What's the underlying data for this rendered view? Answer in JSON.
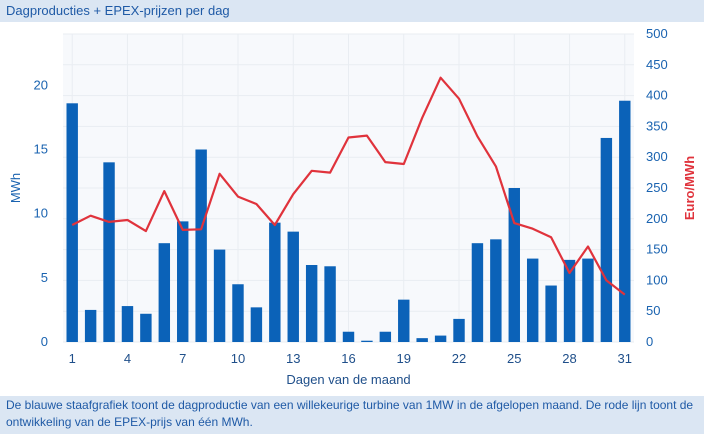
{
  "header": {
    "title": "Dagproducties + EPEX-prijzen per dag"
  },
  "caption": {
    "text": "De blauwe staafgrafiek toont de dagproductie van een willekeurige turbine van 1MW in de afgelopen maand. De rode lijn toont de ontwikkeling van de EPEX-prijs van één MWh."
  },
  "colors": {
    "bar": "#0b62b8",
    "line": "#e0333c",
    "axis_left": "#1a63b0",
    "axis_right": "#e0333c",
    "grid": "#e9edf2"
  },
  "chart_data": {
    "type": "bar",
    "title": "Dagproducties + EPEX-prijzen per dag",
    "xlabel": "Dagen van de maand",
    "ylabel": "MWh",
    "y2label": "Euro/MWh",
    "x": [
      1,
      2,
      3,
      4,
      5,
      6,
      7,
      8,
      9,
      10,
      11,
      12,
      13,
      14,
      15,
      16,
      17,
      18,
      19,
      20,
      21,
      22,
      23,
      24,
      25,
      26,
      27,
      28,
      29,
      30,
      31
    ],
    "xticks": [
      1,
      4,
      7,
      10,
      13,
      16,
      19,
      22,
      25,
      28,
      31
    ],
    "ylim": [
      0,
      24
    ],
    "yticks": [
      0,
      5,
      10,
      15,
      20
    ],
    "y2lim": [
      0,
      500
    ],
    "y2ticks": [
      0,
      50,
      100,
      150,
      200,
      250,
      300,
      350,
      400,
      450,
      500
    ],
    "grid": true,
    "series": [
      {
        "name": "Dagproductie",
        "type": "bar",
        "axis": "left",
        "values": [
          18.6,
          2.5,
          14.0,
          2.8,
          2.2,
          7.7,
          9.4,
          15.0,
          7.2,
          4.5,
          2.7,
          9.3,
          8.6,
          6.0,
          5.9,
          0.8,
          0.1,
          0.8,
          3.3,
          0.3,
          0.5,
          1.8,
          7.7,
          8.0,
          12.0,
          6.5,
          4.4,
          6.4,
          6.5,
          15.9,
          18.8
        ]
      },
      {
        "name": "EPEX-prijs",
        "type": "line",
        "axis": "right",
        "values": [
          190,
          205,
          195,
          198,
          180,
          245,
          182,
          183,
          273,
          236,
          224,
          190,
          240,
          278,
          275,
          332,
          335,
          292,
          289,
          364,
          429,
          395,
          334,
          285,
          193,
          184,
          170,
          112,
          155,
          100,
          77
        ]
      }
    ]
  }
}
